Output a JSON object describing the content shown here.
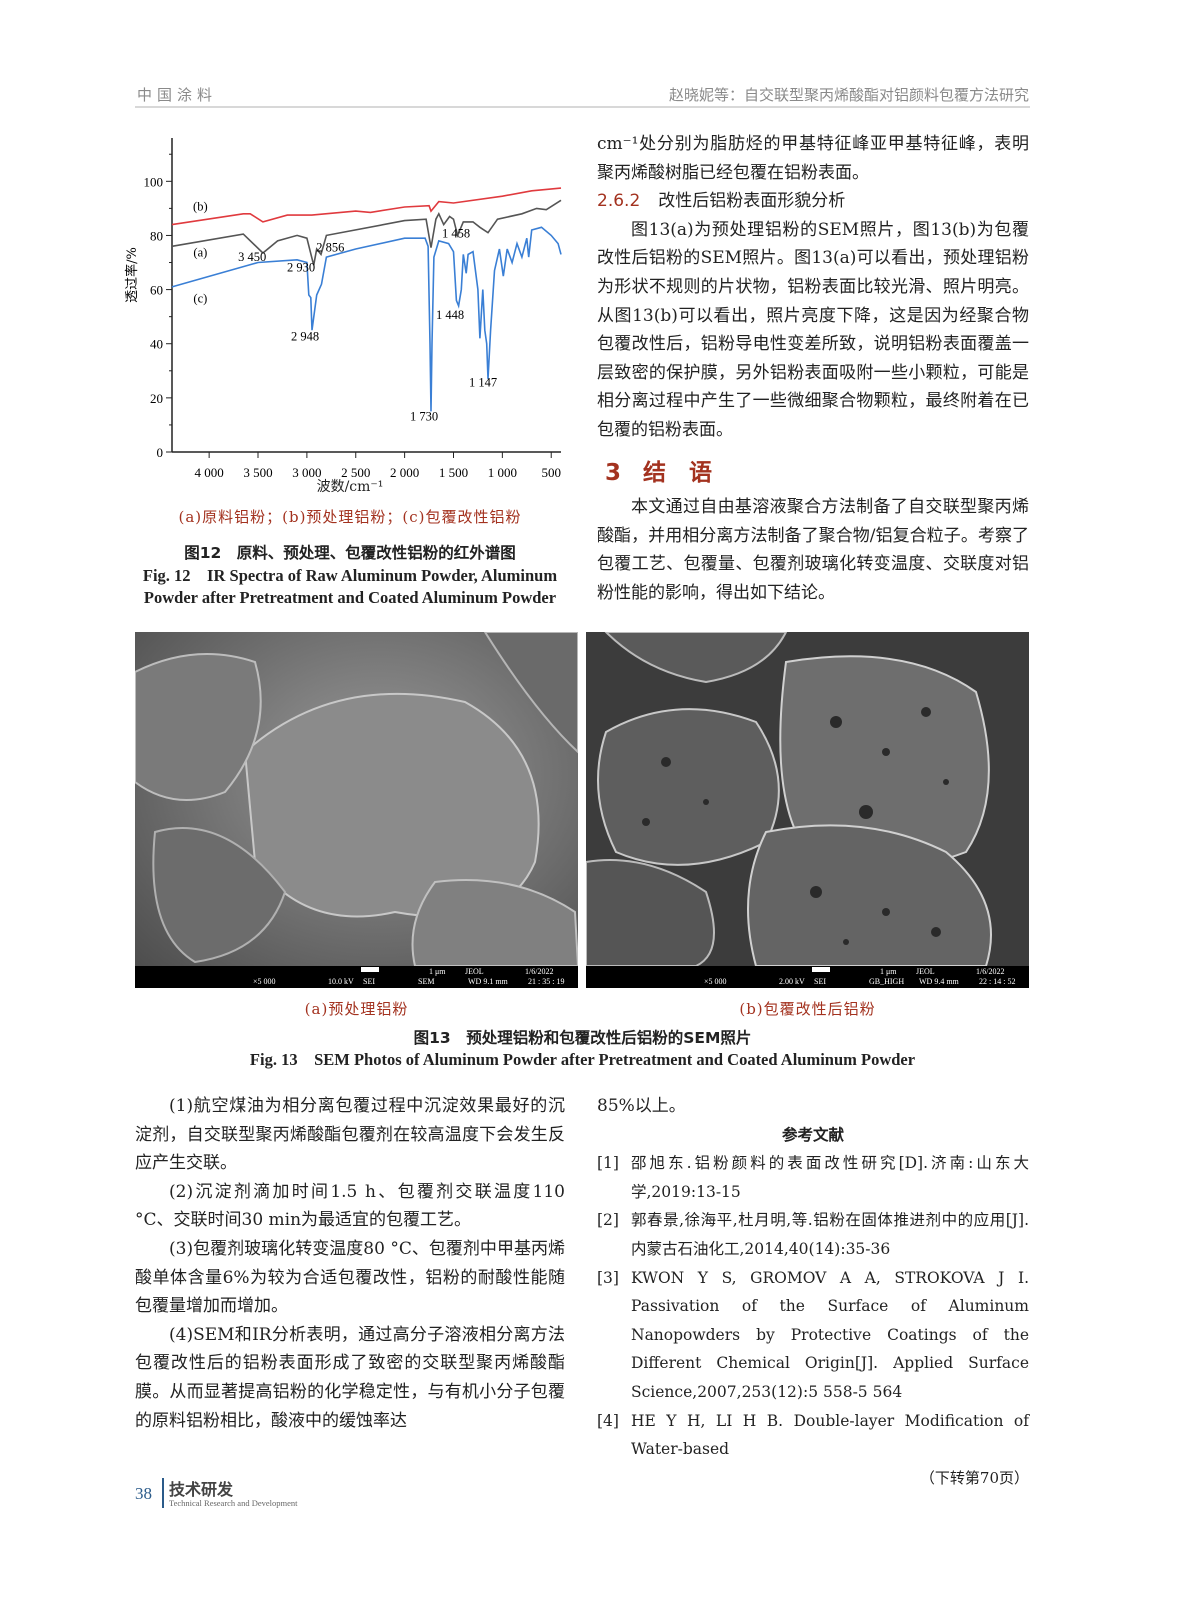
{
  "header": {
    "journal": "中国涂料",
    "running_title": "赵晓妮等：自交联型聚丙烯酸酯对铝颜料包覆方法研究"
  },
  "chart_data": {
    "type": "line",
    "xlabel": "波数/cm⁻¹",
    "ylabel": "透过率/%",
    "xlim": [
      4380,
      400
    ],
    "x_reversed": true,
    "ylim": [
      0,
      116
    ],
    "x_ticks": [
      4000,
      3500,
      3000,
      2500,
      2000,
      1500,
      1000,
      500
    ],
    "x_tick_labels": [
      "4 000",
      "3 500",
      "3 000",
      "2 500",
      "2 000",
      "1 500",
      "1 000",
      "500"
    ],
    "y_ticks": [
      0,
      20,
      40,
      60,
      80,
      100
    ],
    "y_tick_labels": [
      "0",
      "20",
      "40",
      "60",
      "80",
      "100"
    ],
    "grid": false,
    "series": [
      {
        "name": "(b)",
        "color": "#e03a3e",
        "x": [
          4380,
          3650,
          3580,
          3450,
          3200,
          2950,
          2500,
          2350,
          2000,
          1750,
          1730,
          1650,
          1500,
          1000,
          700,
          400
        ],
        "y": [
          84,
          88,
          88,
          85,
          87.5,
          87.5,
          89,
          88.5,
          90.5,
          91,
          89,
          92.5,
          92,
          94.5,
          96.5,
          97.5
        ]
      },
      {
        "name": "(a)",
        "color": "#555555",
        "x": [
          4380,
          3650,
          3450,
          3300,
          3100,
          3000,
          2930,
          2900,
          2856,
          2800,
          2000,
          1780,
          1730,
          1680,
          1650,
          1600,
          1540,
          1500,
          1458,
          1400,
          1300,
          1230,
          1147,
          1050,
          800,
          650,
          550,
          400
        ],
        "y": [
          76,
          80.5,
          73.5,
          78,
          80,
          79,
          69,
          75,
          73,
          80,
          85.5,
          86,
          75.5,
          86,
          88,
          84,
          87,
          86,
          80,
          85,
          85,
          83,
          81,
          86,
          88,
          90,
          89.5,
          93
        ]
      },
      {
        "name": "(c)",
        "color": "#3a7fd5",
        "x": [
          4380,
          3500,
          3100,
          3000,
          2980,
          2960,
          2948,
          2900,
          2850,
          2800,
          2500,
          2000,
          1790,
          1760,
          1740,
          1730,
          1720,
          1700,
          1650,
          1550,
          1500,
          1470,
          1448,
          1420,
          1400,
          1370,
          1350,
          1300,
          1250,
          1230,
          1200,
          1180,
          1160,
          1147,
          1120,
          1080,
          1030,
          990,
          950,
          900,
          850,
          800,
          750,
          730,
          700,
          600,
          500,
          430,
          400
        ],
        "y": [
          61,
          70,
          71,
          70,
          58,
          57,
          45,
          58,
          62,
          72,
          75,
          79,
          79,
          76,
          40,
          15,
          40,
          72,
          78,
          77,
          74,
          56,
          54,
          60,
          73,
          66,
          73,
          74,
          60,
          42,
          60,
          45,
          40,
          27,
          45,
          67,
          75,
          65,
          75,
          70,
          77,
          72,
          79,
          72,
          82,
          83,
          80,
          77,
          73
        ]
      }
    ],
    "annotations": [
      {
        "text": "(b)",
        "x": 4090,
        "y": 91
      },
      {
        "text": "(a)",
        "x": 4090,
        "y": 74
      },
      {
        "text": "(c)",
        "x": 4090,
        "y": 57
      },
      {
        "text": "3 450",
        "x": 3560,
        "y": 72.5
      },
      {
        "text": "2 930",
        "x": 3060,
        "y": 68.5
      },
      {
        "text": "2 856",
        "x": 2760,
        "y": 76
      },
      {
        "text": "1 458",
        "x": 1474,
        "y": 81
      },
      {
        "text": "2 948",
        "x": 3018,
        "y": 43
      },
      {
        "text": "1 448",
        "x": 1535,
        "y": 51
      },
      {
        "text": "1 147",
        "x": 1197,
        "y": 26
      },
      {
        "text": "1 730",
        "x": 1801,
        "y": 13.5
      }
    ]
  },
  "fig12": {
    "legend": "(a)原料铝粉；(b)预处理铝粉；(c)包覆改性铝粉",
    "caption_cn": "图12　原料、预处理、包覆改性铝粉的红外谱图",
    "caption_en": "Fig. 12　IR Spectra of Raw Aluminum Powder, Aluminum Powder after Pretreatment and Coated Aluminum Powder"
  },
  "right_top": {
    "p1": "cm⁻¹处分别为脂肪烃的甲基特征峰亚甲基特征峰，表明聚丙烯酸树脂已经包覆在铝粉表面。",
    "h262_num": "2.6.2",
    "h262": "改性后铝粉表面形貌分析",
    "p2": "图13(a)为预处理铝粉的SEM照片，图13(b)为包覆改性后铝粉的SEM照片。图13(a)可以看出，预处理铝粉为形状不规则的片状物，铝粉表面比较光滑、照片明亮。从图13(b)可以看出，照片亮度下降，这是因为经聚合物包覆改性后，铝粉导电性变差所致，说明铝粉表面覆盖一层致密的保护膜，另外铝粉表面吸附一些小颗粒，可能是相分离过程中产生了一些微细聚合物颗粒，最终附着在已包覆的铝粉表面。",
    "h3_num": "3",
    "h3": "结　语",
    "p3": "本文通过自由基溶液聚合方法制备了自交联型聚丙烯酸酯，并用相分离方法制备了聚合物/铝复合粒子。考察了包覆工艺、包覆量、包覆剂玻璃化转变温度、交联度对铝粉性能的影响，得出如下结论。"
  },
  "fig13": {
    "a": {
      "mag": "×5 000",
      "kv": "10.0 kV",
      "mode": "SEI",
      "scale": "1 μm",
      "det": "SEM",
      "brand": "JEOL",
      "wd": "WD  9.1 mm",
      "date": "1/6/2022",
      "time": "21 : 35 : 19",
      "label": "(a)预处理铝粉"
    },
    "b": {
      "mag": "×5 000",
      "kv": "2.00 kV",
      "mode": "SEI",
      "scale": "1 μm",
      "det": "GB_HIGH",
      "brand": "JEOL",
      "wd": "WD  9.4 mm",
      "date": "1/6/2022",
      "time": "22 : 14 : 52",
      "label": "(b)包覆改性后铝粉"
    },
    "caption_cn": "图13　预处理铝粉和包覆改性后铝粉的SEM照片",
    "caption_en": "Fig. 13　SEM Photos of Aluminum Powder after Pretreatment and Coated Aluminum Powder"
  },
  "conclusions": [
    "(1)航空煤油为相分离包覆过程中沉淀效果最好的沉淀剂，自交联型聚丙烯酸酯包覆剂在较高温度下会发生反应产生交联。",
    "(2)沉淀剂滴加时间1.5 h、包覆剂交联温度110 °C、交联时间30 min为最适宜的包覆工艺。",
    "(3)包覆剂玻璃化转变温度80 °C、包覆剂中甲基丙烯酸单体含量6%为较为合适包覆改性，铝粉的耐酸性能随包覆量增加而增加。",
    "(4)SEM和IR分析表明，通过高分子溶液相分离方法包覆改性后的铝粉表面形成了致密的交联型聚丙烯酸酯膜。从而显著提高铝粉的化学稳定性，与有机小分子包覆的原料铝粉相比，酸液中的缓蚀率达"
  ],
  "continued": "85%以上。",
  "references": {
    "title": "参考文献",
    "items": [
      {
        "n": "[1]",
        "text": "邵旭东.铝粉颜料的表面改性研究[D].济南:山东大学,2019:13-15"
      },
      {
        "n": "[2]",
        "text": "郭春景,徐海平,杜月明,等.铝粉在固体推进剂中的应用[J].内蒙古石油化工,2014,40(14):35-36"
      },
      {
        "n": "[3]",
        "text": "KWON Y S, GROMOV A A, STROKOVA J I. Passivation of the Surface of Aluminum Nanopowders by Protective Coatings of the Different Chemical Origin[J]. Applied Surface Science,2007,253(12):5 558-5 564"
      },
      {
        "n": "[4]",
        "text": "HE Y H, LI H B. Double-layer Modification of Water-based"
      }
    ],
    "continued_note": "（下转第70页）"
  },
  "footer": {
    "page": "38",
    "section_cn": "技术研发",
    "section_en": "Technical Research and Development"
  }
}
